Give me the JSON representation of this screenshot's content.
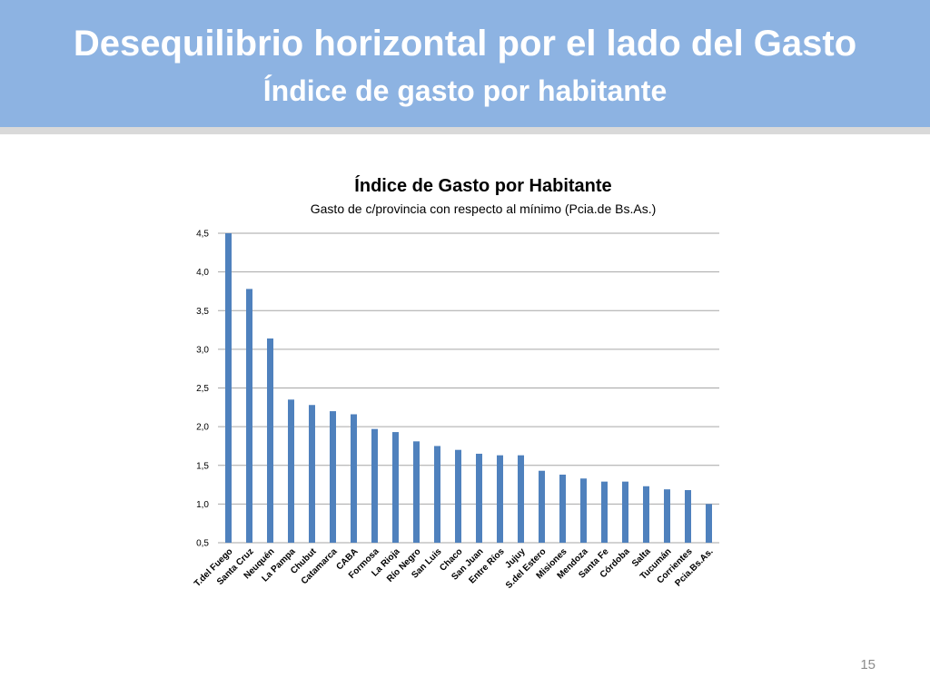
{
  "slide": {
    "title": "Desequilibrio horizontal por el lado del Gasto",
    "subtitle": "Índice de  gasto por habitante",
    "page_number": "15"
  },
  "colors": {
    "header_bg": "#8db3e2",
    "bar": "#4f81bd",
    "grid": "#a6a6a6"
  },
  "chart_data": {
    "type": "bar",
    "title": "Índice de Gasto por Habitante",
    "subtitle": "Gasto de c/provincia con respecto al mínimo (Pcia.de Bs.As.)",
    "xlabel": "",
    "ylabel": "",
    "ylim": [
      0.5,
      4.5
    ],
    "yticks": [
      "0,5",
      "1,0",
      "1,5",
      "2,0",
      "2,5",
      "3,0",
      "3,5",
      "4,0",
      "4,5"
    ],
    "grid": true,
    "legend": "none",
    "categories": [
      "T.del Fuego",
      "Santa Cruz",
      "Neuquén",
      "La Pampa",
      "Chubut",
      "Catamarca",
      "CABA",
      "Formosa",
      "La Rioja",
      "Río Negro",
      "San Luis",
      "Chaco",
      "San Juan",
      "Entre Ríos",
      "Jujuy",
      "S.del Estero",
      "Misiones",
      "Mendoza",
      "Santa Fe",
      "Córdoba",
      "Salta",
      "Tucumán",
      "Corrientes",
      "Pcia.Bs.As."
    ],
    "values": [
      4.5,
      3.78,
      3.14,
      2.35,
      2.28,
      2.2,
      2.16,
      1.97,
      1.93,
      1.81,
      1.75,
      1.7,
      1.65,
      1.63,
      1.63,
      1.43,
      1.38,
      1.33,
      1.29,
      1.29,
      1.23,
      1.19,
      1.18,
      1.0
    ]
  }
}
